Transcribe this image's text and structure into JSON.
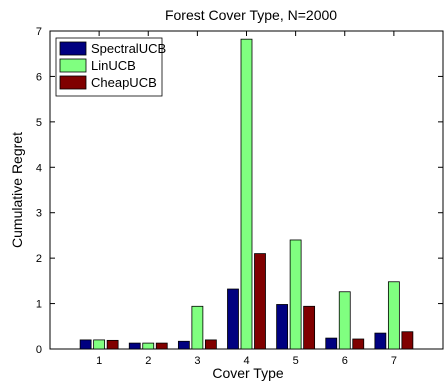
{
  "chart_data": {
    "type": "bar",
    "title": "Forest Cover Type, N=2000",
    "xlabel": "Cover Type",
    "ylabel": "Cumulative Regret",
    "categories": [
      "1",
      "2",
      "3",
      "4",
      "5",
      "6",
      "7"
    ],
    "ylim": [
      0,
      7
    ],
    "yticks": [
      "0",
      "1",
      "2",
      "3",
      "4",
      "5",
      "6",
      "7"
    ],
    "legend_position": "top-left",
    "grid": false,
    "series": [
      {
        "name": "SpectralUCB",
        "color": "#000080",
        "values": [
          0.2,
          0.13,
          0.17,
          1.32,
          0.98,
          0.24,
          0.35
        ]
      },
      {
        "name": "LinUCB",
        "color": "#80ff80",
        "values": [
          0.2,
          0.13,
          0.94,
          6.82,
          2.4,
          1.26,
          1.48
        ]
      },
      {
        "name": "CheapUCB",
        "color": "#800000",
        "values": [
          0.19,
          0.13,
          0.2,
          2.1,
          0.94,
          0.22,
          0.38
        ]
      }
    ]
  }
}
